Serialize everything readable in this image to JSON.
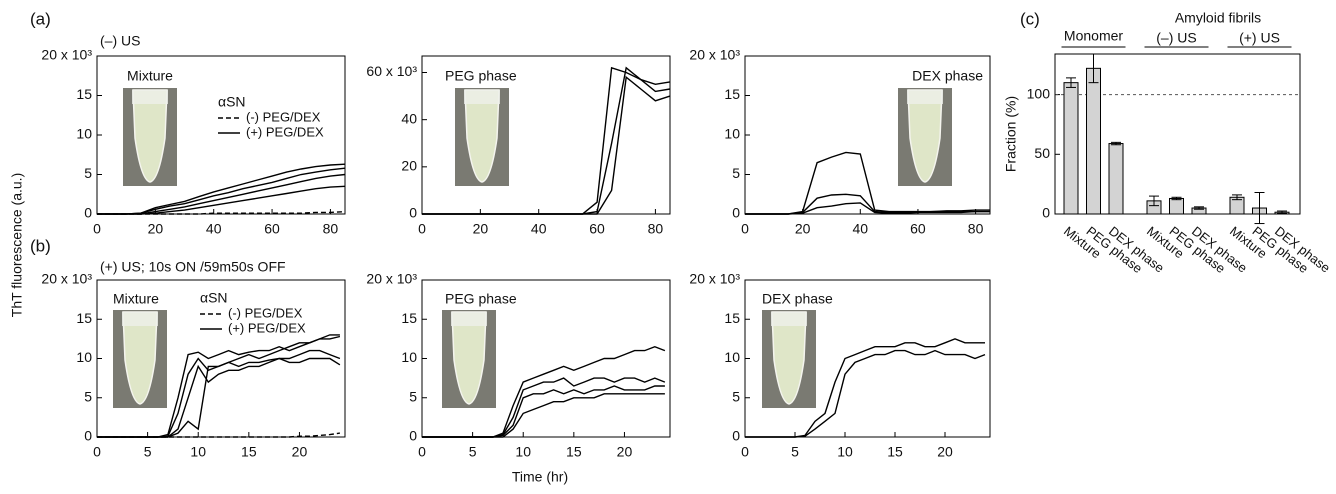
{
  "y_axis_label": "ThT fluorescence (a.u.)",
  "x_axis_label": "Time (hr)",
  "chart_data": [
    {
      "type": "line",
      "panel": "(a)",
      "subtitle": "(–) US",
      "label": "Mixture",
      "legend_title": "αSN",
      "x": [
        0,
        5,
        10,
        15,
        20,
        25,
        30,
        35,
        40,
        45,
        50,
        55,
        60,
        65,
        70,
        75,
        80,
        85
      ],
      "series": [
        {
          "name": "(-) PEG/DEX",
          "dash": true,
          "color": "#000",
          "values": [
            0,
            0,
            0,
            0,
            0,
            0,
            0,
            0,
            0.1,
            0.1,
            0.1,
            0.1,
            0.1,
            0.1,
            0.1,
            0.2,
            0.2,
            0.3
          ]
        },
        {
          "name": "(+) PEG/DEX",
          "color": "#000",
          "values": [
            0,
            0,
            0,
            0.1,
            0.8,
            1.2,
            1.6,
            2.2,
            2.8,
            3.3,
            3.8,
            4.3,
            4.8,
            5.3,
            5.7,
            6.0,
            6.2,
            6.3
          ]
        },
        {
          "color": "#000",
          "values": [
            0,
            0,
            0,
            0.1,
            0.6,
            1.0,
            1.3,
            1.8,
            2.3,
            2.7,
            3.2,
            3.6,
            4.0,
            4.5,
            5.0,
            5.3,
            5.6,
            5.8
          ]
        },
        {
          "color": "#000",
          "values": [
            0,
            0,
            0,
            0,
            0.3,
            0.6,
            0.9,
            1.3,
            1.7,
            2.1,
            2.5,
            2.9,
            3.3,
            3.7,
            4.1,
            4.5,
            4.8,
            5.0
          ]
        },
        {
          "color": "#000",
          "values": [
            0,
            0,
            0,
            0,
            0.1,
            0.3,
            0.5,
            0.8,
            1.1,
            1.4,
            1.7,
            2.0,
            2.3,
            2.6,
            2.9,
            3.2,
            3.4,
            3.5
          ]
        }
      ],
      "xlim": [
        0,
        85
      ],
      "xticks": [
        0,
        20,
        40,
        60,
        80
      ],
      "ylim": [
        0,
        20
      ],
      "yticks": [
        0,
        5,
        10,
        15,
        {
          "value": 20,
          "label": "20 x 10³"
        }
      ]
    },
    {
      "type": "line",
      "label": "PEG phase",
      "x": [
        0,
        5,
        10,
        15,
        20,
        25,
        30,
        35,
        40,
        45,
        50,
        55,
        60,
        65,
        70,
        75,
        80,
        85
      ],
      "series": [
        {
          "color": "#000",
          "values": [
            0,
            0,
            0,
            0,
            0,
            0,
            0,
            0,
            0,
            0,
            0,
            0,
            5,
            62,
            60,
            57,
            55,
            56
          ]
        },
        {
          "color": "#000",
          "values": [
            0,
            0,
            0,
            0,
            0,
            0,
            0,
            0,
            0,
            0,
            0,
            0,
            1,
            30,
            62,
            57,
            52,
            53
          ]
        },
        {
          "color": "#000",
          "values": [
            0,
            0,
            0,
            0,
            0,
            0,
            0,
            0,
            0,
            0,
            0,
            0,
            0,
            10,
            58,
            53,
            48,
            50
          ]
        }
      ],
      "xlim": [
        0,
        85
      ],
      "xticks": [
        0,
        20,
        40,
        60,
        80
      ],
      "ylim": [
        0,
        67
      ],
      "yticks": [
        0,
        20,
        40,
        {
          "value": 60,
          "label": "60 x 10³"
        }
      ]
    },
    {
      "type": "line",
      "label": "DEX phase",
      "x": [
        0,
        5,
        10,
        15,
        20,
        25,
        30,
        35,
        40,
        45,
        50,
        55,
        60,
        65,
        70,
        75,
        80,
        85
      ],
      "series": [
        {
          "color": "#000",
          "values": [
            0,
            0,
            0,
            0,
            0.3,
            6.5,
            7.2,
            7.8,
            7.6,
            0.5,
            0.3,
            0.3,
            0.3,
            0.3,
            0.4,
            0.4,
            0.5,
            0.5
          ]
        },
        {
          "color": "#000",
          "values": [
            0,
            0,
            0,
            0,
            0.2,
            2,
            2.4,
            2.5,
            2.3,
            0.3,
            0.2,
            0.2,
            0.2,
            0.3,
            0.3,
            0.3,
            0.3,
            0.3
          ]
        },
        {
          "color": "#000",
          "values": [
            0,
            0,
            0,
            0,
            0.1,
            0.8,
            1,
            1.3,
            1.4,
            0.2,
            0.1,
            0.1,
            0.2,
            0.2,
            0.2,
            0.2,
            0.3,
            0.3
          ]
        }
      ],
      "xlim": [
        0,
        85
      ],
      "xticks": [
        0,
        20,
        40,
        60,
        80
      ],
      "ylim": [
        0,
        20
      ],
      "yticks": [
        0,
        5,
        10,
        15,
        {
          "value": 20,
          "label": "20 x 10³"
        }
      ]
    },
    {
      "type": "line",
      "panel": "(b)",
      "subtitle": "(+) US; 10s ON /59m50s OFF",
      "label": "Mixture",
      "legend_title": "αSN",
      "x": [
        0,
        1,
        2,
        3,
        4,
        5,
        6,
        7,
        8,
        9,
        10,
        11,
        12,
        13,
        14,
        15,
        16,
        17,
        18,
        19,
        20,
        21,
        22,
        23,
        24
      ],
      "series": [
        {
          "name": "(-) PEG/DEX",
          "dash": true,
          "color": "#000",
          "values": [
            0,
            0,
            0,
            0,
            0,
            0,
            0,
            0,
            0,
            0,
            0,
            0,
            0,
            0,
            0,
            0,
            0,
            0,
            0,
            0,
            0.1,
            0.1,
            0.2,
            0.3,
            0.5
          ]
        },
        {
          "name": "(+) PEG/DEX",
          "color": "#000",
          "values": [
            0,
            0,
            0,
            0,
            0,
            0,
            0,
            0.3,
            5,
            10.5,
            10.8,
            10,
            10.5,
            11,
            10.5,
            10.8,
            11,
            11,
            11.5,
            11,
            11.5,
            12,
            12.5,
            13,
            13
          ]
        },
        {
          "color": "#000",
          "values": [
            0,
            0,
            0,
            0,
            0,
            0,
            0,
            0.1,
            3,
            8,
            10,
            8.5,
            9,
            9.5,
            10,
            10.5,
            10,
            10.5,
            11,
            11.5,
            12,
            12,
            12.5,
            12.5,
            12.8
          ]
        },
        {
          "color": "#000",
          "values": [
            0,
            0,
            0,
            0,
            0,
            0,
            0,
            0,
            1,
            5,
            9,
            7,
            8,
            8.5,
            8.5,
            9,
            9,
            9.5,
            10,
            10,
            10.5,
            11,
            11,
            10.5,
            10
          ]
        },
        {
          "color": "#000",
          "values": [
            0,
            0,
            0,
            0,
            0,
            0,
            0,
            0,
            0.5,
            2,
            1,
            9,
            9,
            9.5,
            9,
            9.5,
            9.5,
            9.8,
            10,
            9.5,
            9.5,
            10,
            10,
            10,
            9.2
          ]
        }
      ],
      "xlim": [
        0,
        24.5
      ],
      "xticks": [
        0,
        5,
        10,
        15,
        20
      ],
      "ylim": [
        0,
        20
      ],
      "yticks": [
        0,
        5,
        10,
        15,
        {
          "value": 20,
          "label": "20 x 10³"
        }
      ]
    },
    {
      "type": "line",
      "label": "PEG phase",
      "x": [
        0,
        1,
        2,
        3,
        4,
        5,
        6,
        7,
        8,
        9,
        10,
        11,
        12,
        13,
        14,
        15,
        16,
        17,
        18,
        19,
        20,
        21,
        22,
        23,
        24
      ],
      "series": [
        {
          "color": "#000",
          "values": [
            0,
            0,
            0,
            0,
            0,
            0,
            0,
            0,
            0.5,
            4,
            7,
            7.5,
            8,
            8.5,
            9,
            8.5,
            9,
            9.5,
            10,
            10,
            10.5,
            11,
            11,
            11.5,
            11
          ]
        },
        {
          "color": "#000",
          "values": [
            0,
            0,
            0,
            0,
            0,
            0,
            0,
            0,
            0.3,
            2.5,
            6,
            6.5,
            7,
            7,
            7.5,
            6.5,
            7,
            7.5,
            7.5,
            7,
            7.5,
            7.5,
            7,
            7.5,
            7
          ]
        },
        {
          "color": "#000",
          "values": [
            0,
            0,
            0,
            0,
            0,
            0,
            0,
            0,
            0.2,
            1.5,
            5,
            5.5,
            5.5,
            6,
            5.5,
            6,
            5.5,
            6,
            6,
            6.5,
            6,
            6,
            6,
            6.5,
            6.5
          ]
        },
        {
          "color": "#000",
          "values": [
            0,
            0,
            0,
            0,
            0,
            0,
            0,
            0,
            0,
            1,
            3,
            3.5,
            4,
            4.5,
            4.5,
            5,
            5,
            5,
            5.5,
            5.5,
            5.5,
            5.5,
            5.5,
            5.5,
            5.5
          ]
        }
      ],
      "xlim": [
        0,
        24.5
      ],
      "xticks": [
        0,
        5,
        10,
        15,
        20
      ],
      "ylim": [
        0,
        20
      ],
      "yticks": [
        0,
        5,
        10,
        15,
        {
          "value": 20,
          "label": "20 x 10³"
        }
      ]
    },
    {
      "type": "line",
      "label": "DEX phase",
      "x": [
        0,
        1,
        2,
        3,
        4,
        5,
        6,
        7,
        8,
        9,
        10,
        11,
        12,
        13,
        14,
        15,
        16,
        17,
        18,
        19,
        20,
        21,
        22,
        23,
        24
      ],
      "series": [
        {
          "color": "#000",
          "values": [
            0,
            0,
            0,
            0,
            0,
            0,
            0.2,
            2,
            3,
            7,
            10,
            10.5,
            11,
            11.5,
            11.5,
            11.5,
            12,
            12,
            11.5,
            11.5,
            12,
            12.5,
            12,
            12,
            12
          ]
        },
        {
          "color": "#000",
          "values": [
            0,
            0,
            0,
            0,
            0,
            0,
            0.1,
            1,
            2,
            3,
            8,
            9.5,
            10,
            10.5,
            10.5,
            11,
            11,
            10.5,
            10.5,
            11,
            10.5,
            10.5,
            10.5,
            10,
            10.5
          ]
        }
      ],
      "xlim": [
        0,
        24.5
      ],
      "xticks": [
        0,
        5,
        10,
        15,
        20
      ],
      "ylim": [
        0,
        20
      ],
      "yticks": [
        0,
        5,
        10,
        15,
        {
          "value": 20,
          "label": "20 x 10³"
        }
      ]
    },
    {
      "type": "bar",
      "panel": "(c)",
      "y_label": "Fraction (%)",
      "groups": [
        "Monomer",
        "(–) US",
        "(+) US"
      ],
      "supergroup": "Amyloid fibrils",
      "categories": [
        "Mixture",
        "PEG phase",
        "DEX phase",
        "Mixture",
        "PEG phase",
        "DEX phase",
        "Mixture",
        "PEG phase",
        "DEX phase"
      ],
      "values": [
        110,
        122,
        59,
        11,
        13,
        5,
        14,
        5,
        1.5
      ],
      "errors": [
        4,
        12,
        1,
        4,
        1,
        1,
        2,
        13,
        1
      ],
      "color": "#d3d3d3",
      "ref_line": 100,
      "ylim": [
        0,
        134
      ],
      "yticks": [
        0,
        50,
        100
      ]
    }
  ]
}
